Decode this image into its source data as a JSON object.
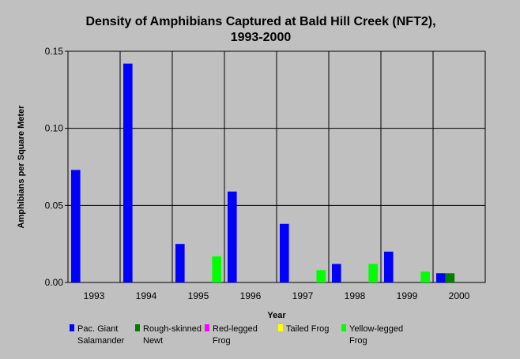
{
  "chart_data": {
    "type": "bar",
    "title_line1": "Density of Amphibians Captured at Bald Hill Creek (NFT2),",
    "title_line2": "1993-2000",
    "xlabel": "Year",
    "ylabel": "Amphibians per Square Meter",
    "ylim": [
      0,
      0.15
    ],
    "yticks": [
      "0.00",
      "0.05",
      "0.10",
      "0.15"
    ],
    "yticks_values": [
      0,
      0.05,
      0.1,
      0.15
    ],
    "grid": true,
    "legend_position": "bottom",
    "categories": [
      "1993",
      "1994",
      "1995",
      "1996",
      "1997",
      "1998",
      "1999",
      "2000"
    ],
    "series": [
      {
        "name_line1": "Pac. Giant",
        "name_line2": "Salamander",
        "color": "#0000ff",
        "values": [
          0.073,
          0.142,
          0.025,
          0.059,
          0.038,
          0.012,
          0.02,
          0.006
        ]
      },
      {
        "name_line1": "Rough-skinned",
        "name_line2": "Newt",
        "color": "#008000",
        "values": [
          0,
          0,
          0,
          0,
          0,
          0,
          0,
          0.006
        ]
      },
      {
        "name_line1": "Red-legged",
        "name_line2": "Frog",
        "color": "#ff00ff",
        "values": [
          0,
          0,
          0,
          0,
          0,
          0,
          0,
          0
        ]
      },
      {
        "name_line1": "Tailed Frog",
        "name_line2": "",
        "color": "#ffff00",
        "values": [
          0,
          0,
          0,
          0,
          0,
          0,
          0,
          0
        ]
      },
      {
        "name_line1": "Yellow-legged",
        "name_line2": "Frog",
        "color": "#00ff00",
        "values": [
          0,
          0,
          0.017,
          0,
          0.008,
          0.012,
          0.007,
          0
        ]
      }
    ]
  }
}
